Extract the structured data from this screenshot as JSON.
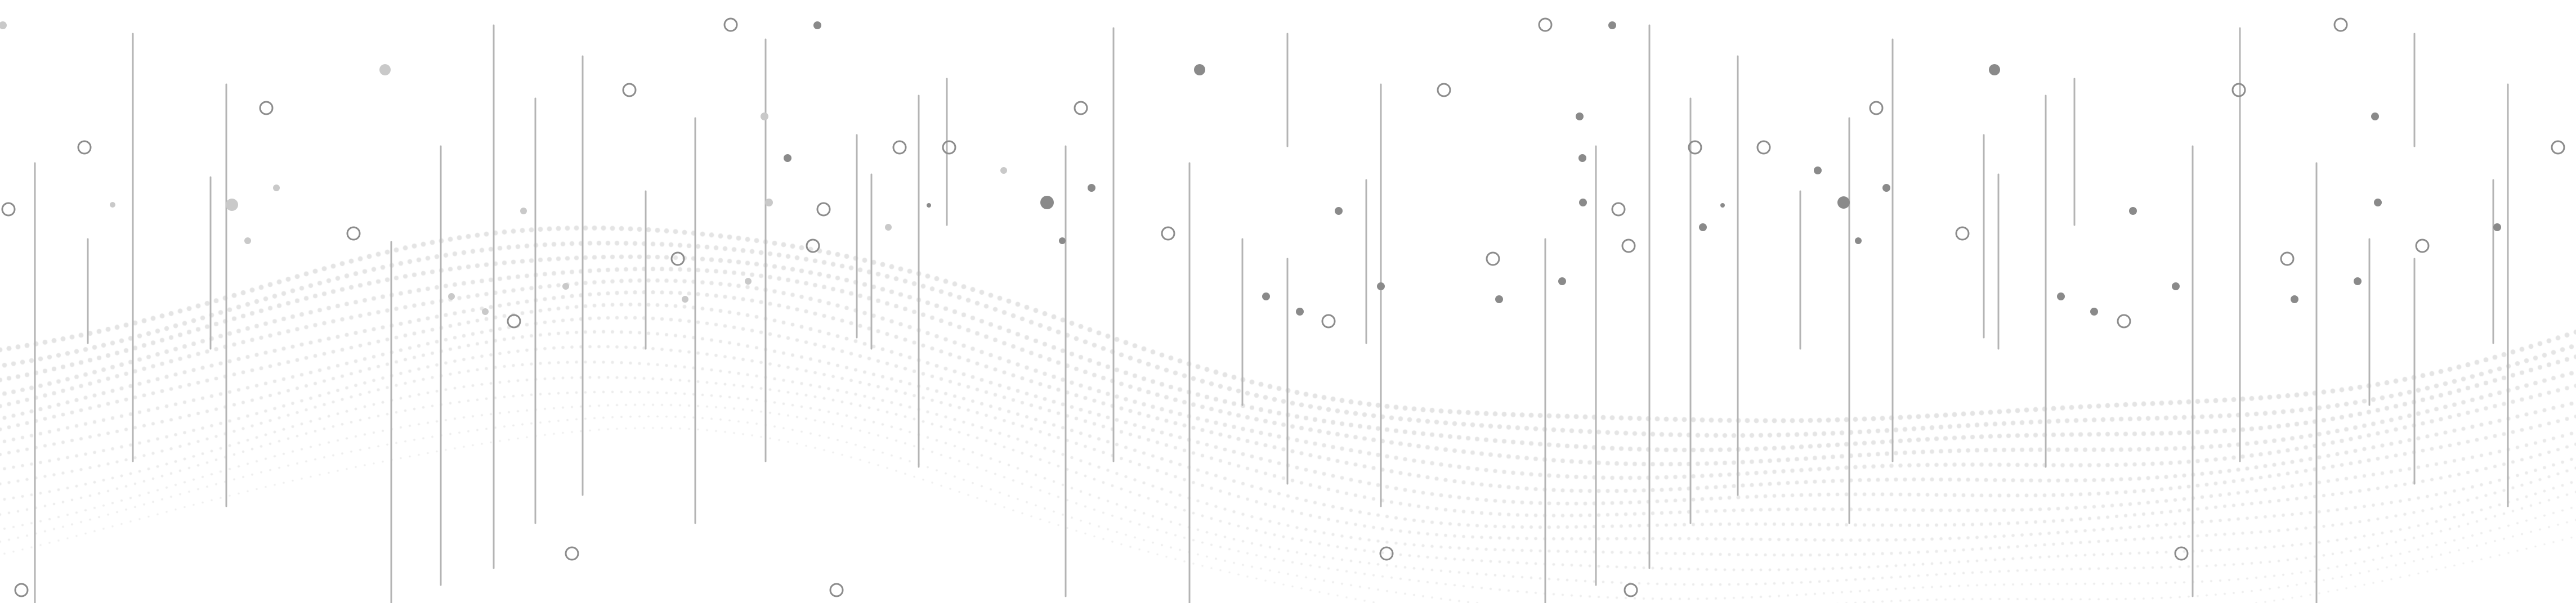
{
  "background": {
    "color": "#ffffff"
  },
  "palette": {
    "line_stroke": "#b4b4b4",
    "ring_stroke": "#8c8c8c",
    "dot_dark": "#8a8a8a",
    "dot_light": "#c9c9c9",
    "wave_dot": "#e4e4e4"
  },
  "elements": {
    "vertical_lines": "thin-gray-vertical-lines",
    "rings": "hollow-circle-outlines",
    "dots": "solid-gray-dots",
    "wave": "halftone-dotted-wave"
  }
}
